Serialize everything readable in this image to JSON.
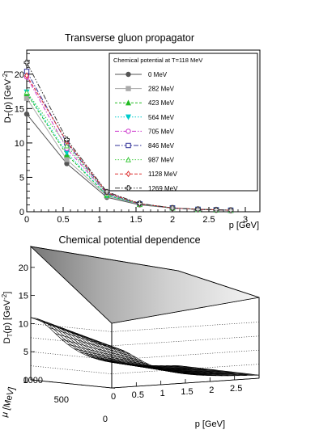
{
  "chart_data": [
    {
      "type": "line",
      "title": "Transverse gluon propagator",
      "xlabel": "p [GeV]",
      "ylabel": "D_T(p) [GeV^-2]",
      "xlim": [
        0,
        3.2
      ],
      "ylim": [
        0,
        23.5
      ],
      "xticks": [
        0,
        0.5,
        1,
        1.5,
        2,
        2.5,
        3
      ],
      "yticks": [
        0,
        5,
        10,
        15,
        20
      ],
      "grid": false,
      "legend": {
        "title": "Chemical potential at T=118 MeV",
        "placement": "top-right"
      },
      "x": [
        0,
        0.55,
        1.1,
        1.55,
        2.0,
        2.35,
        2.6,
        2.8
      ],
      "series": [
        {
          "name": "0 MeV",
          "color": "#555555",
          "marker": "filled-circle",
          "values": [
            14.2,
            7.0,
            2.1,
            1.0,
            0.55,
            0.35,
            0.28,
            0.22
          ]
        },
        {
          "name": "282 MeV",
          "color": "#aaaaaa",
          "marker": "filled-square",
          "values": [
            16.5,
            7.6,
            2.3,
            1.05,
            0.55,
            0.35,
            0.28,
            0.22
          ]
        },
        {
          "name": "423 MeV",
          "color": "#22bb22",
          "marker": "filled-triangle",
          "values": [
            17.2,
            8.3,
            2.4,
            1.1,
            0.55,
            0.35,
            0.28,
            0.22
          ]
        },
        {
          "name": "564 MeV",
          "color": "#00cccc",
          "marker": "filled-triangle-down",
          "values": [
            17.4,
            8.6,
            2.4,
            1.1,
            0.55,
            0.35,
            0.28,
            0.22
          ]
        },
        {
          "name": "705 MeV",
          "color": "#cc33cc",
          "marker": "open-circle",
          "values": [
            19.6,
            9.2,
            2.6,
            1.1,
            0.55,
            0.35,
            0.28,
            0.22
          ]
        },
        {
          "name": "846 MeV",
          "color": "#333399",
          "marker": "open-square",
          "values": [
            20.4,
            10.0,
            2.7,
            1.15,
            0.55,
            0.35,
            0.28,
            0.22
          ]
        },
        {
          "name": "987 MeV",
          "color": "#44cc44",
          "marker": "open-triangle",
          "values": [
            17.4,
            9.6,
            2.6,
            1.1,
            0.55,
            0.35,
            0.28,
            0.22
          ]
        },
        {
          "name": "1128 MeV",
          "color": "#dd3333",
          "marker": "open-diamond",
          "values": [
            19.8,
            10.2,
            2.8,
            1.15,
            0.55,
            0.35,
            0.28,
            0.22
          ]
        },
        {
          "name": "1269 MeV",
          "color": "#333333",
          "marker": "open-cross",
          "values": [
            21.7,
            10.5,
            2.9,
            1.2,
            0.55,
            0.35,
            0.28,
            0.22
          ]
        }
      ]
    },
    {
      "type": "surface",
      "title": "Chemical potential dependence",
      "xlabel": "p [GeV]",
      "ylabel": "μ [MeV]",
      "zlabel": "D_T(p) [GeV^-2]",
      "xlim": [
        0,
        3
      ],
      "ylim": [
        0,
        1300
      ],
      "zlim": [
        0,
        23
      ],
      "xticks": [
        0,
        0.5,
        1,
        1.5,
        2,
        2.5
      ],
      "yticks": [
        0,
        500,
        1000
      ],
      "zticks": [
        0,
        5,
        10,
        15,
        20
      ],
      "grid": true
    }
  ]
}
